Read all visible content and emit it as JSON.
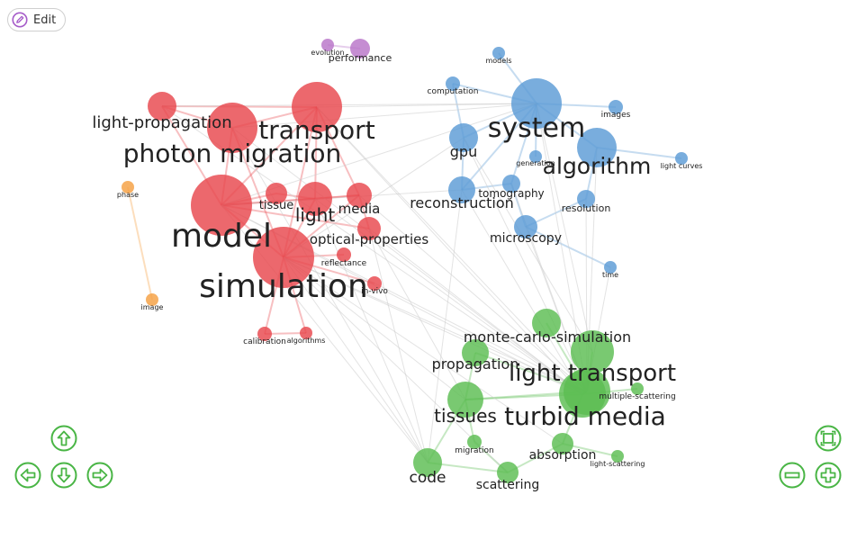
{
  "toolbar": {
    "edit_label": "Edit",
    "edit_icon": "pencil-icon"
  },
  "colors": {
    "clusters": {
      "red": "#e8474d",
      "blue": "#5b9bd5",
      "green": "#5cbd52",
      "orange": "#f5a042",
      "purple": "#b874c8"
    },
    "edge": "#cccccc",
    "controls": "#49b545",
    "edit": "#a65cc9"
  },
  "nav_controls": {
    "up": {
      "icon": "arrow-up-icon"
    },
    "down": {
      "icon": "arrow-down-icon"
    },
    "left": {
      "icon": "arrow-left-icon"
    },
    "right": {
      "icon": "arrow-right-icon"
    },
    "fit": {
      "icon": "fit-screen-icon"
    },
    "zoom_out": {
      "icon": "zoom-out-icon"
    },
    "zoom_in": {
      "icon": "zoom-in-icon"
    }
  },
  "network": {
    "nodes": [
      {
        "id": "model",
        "label": "model",
        "cluster": "red"
      },
      {
        "id": "simulation",
        "label": "simulation",
        "cluster": "red"
      },
      {
        "id": "photon-migration",
        "label": "photon migration",
        "cluster": "red"
      },
      {
        "id": "transport",
        "label": "transport",
        "cluster": "red"
      },
      {
        "id": "light-propagation",
        "label": "light-propagation",
        "cluster": "red"
      },
      {
        "id": "light",
        "label": "light",
        "cluster": "red"
      },
      {
        "id": "media",
        "label": "media",
        "cluster": "red"
      },
      {
        "id": "tissue",
        "label": "tissue",
        "cluster": "red"
      },
      {
        "id": "optical-properties",
        "label": "optical-properties",
        "cluster": "red"
      },
      {
        "id": "reflectance",
        "label": "reflectance",
        "cluster": "red"
      },
      {
        "id": "in-vivo",
        "label": "in-vivo",
        "cluster": "red"
      },
      {
        "id": "calibration",
        "label": "calibration",
        "cluster": "red"
      },
      {
        "id": "algorithms",
        "label": "algorithms",
        "cluster": "red"
      },
      {
        "id": "system",
        "label": "system",
        "cluster": "blue"
      },
      {
        "id": "algorithm",
        "label": "algorithm",
        "cluster": "blue"
      },
      {
        "id": "gpu",
        "label": "gpu",
        "cluster": "blue"
      },
      {
        "id": "reconstruction",
        "label": "reconstruction",
        "cluster": "blue"
      },
      {
        "id": "tomography",
        "label": "tomography",
        "cluster": "blue"
      },
      {
        "id": "resolution",
        "label": "resolution",
        "cluster": "blue"
      },
      {
        "id": "microscopy",
        "label": "microscopy",
        "cluster": "blue"
      },
      {
        "id": "computation",
        "label": "computation",
        "cluster": "blue"
      },
      {
        "id": "models",
        "label": "models",
        "cluster": "blue"
      },
      {
        "id": "images",
        "label": "images",
        "cluster": "blue"
      },
      {
        "id": "generation",
        "label": "generation",
        "cluster": "blue"
      },
      {
        "id": "light-curves",
        "label": "light curves",
        "cluster": "blue"
      },
      {
        "id": "time",
        "label": "time",
        "cluster": "blue"
      },
      {
        "id": "monte-carlo-simulation",
        "label": "monte-carlo-simulation",
        "cluster": "green"
      },
      {
        "id": "light-transport",
        "label": "light transport",
        "cluster": "green"
      },
      {
        "id": "turbid-media",
        "label": "turbid media",
        "cluster": "green"
      },
      {
        "id": "tissues",
        "label": "tissues",
        "cluster": "green"
      },
      {
        "id": "propagation",
        "label": "propagation",
        "cluster": "green"
      },
      {
        "id": "multiple-scattering",
        "label": "multiple-scattering",
        "cluster": "green"
      },
      {
        "id": "absorption",
        "label": "absorption",
        "cluster": "green"
      },
      {
        "id": "light-scattering",
        "label": "light-scattering",
        "cluster": "green"
      },
      {
        "id": "migration",
        "label": "migration",
        "cluster": "green"
      },
      {
        "id": "code",
        "label": "code",
        "cluster": "green"
      },
      {
        "id": "scattering",
        "label": "scattering",
        "cluster": "green"
      },
      {
        "id": "green-unlabeled",
        "label": "",
        "cluster": "green"
      },
      {
        "id": "phase",
        "label": "phase",
        "cluster": "orange"
      },
      {
        "id": "image",
        "label": "image",
        "cluster": "orange"
      },
      {
        "id": "evolution",
        "label": "evolution",
        "cluster": "purple"
      },
      {
        "id": "performance",
        "label": "performance",
        "cluster": "purple"
      }
    ],
    "edges": [
      [
        "model",
        "simulation"
      ],
      [
        "model",
        "photon-migration"
      ],
      [
        "model",
        "transport"
      ],
      [
        "model",
        "light-propagation"
      ],
      [
        "model",
        "light"
      ],
      [
        "model",
        "media"
      ],
      [
        "model",
        "tissue"
      ],
      [
        "model",
        "optical-properties"
      ],
      [
        "simulation",
        "photon-migration"
      ],
      [
        "simulation",
        "transport"
      ],
      [
        "simulation",
        "light"
      ],
      [
        "simulation",
        "media"
      ],
      [
        "simulation",
        "reflectance"
      ],
      [
        "simulation",
        "in-vivo"
      ],
      [
        "simulation",
        "calibration"
      ],
      [
        "simulation",
        "algorithms"
      ],
      [
        "photon-migration",
        "transport"
      ],
      [
        "photon-migration",
        "light-propagation"
      ],
      [
        "transport",
        "light-propagation"
      ],
      [
        "transport",
        "light"
      ],
      [
        "transport",
        "media"
      ],
      [
        "light",
        "media"
      ],
      [
        "light",
        "tissue"
      ],
      [
        "media",
        "optical-properties"
      ],
      [
        "calibration",
        "algorithms"
      ],
      [
        "system",
        "algorithm"
      ],
      [
        "system",
        "gpu"
      ],
      [
        "system",
        "reconstruction"
      ],
      [
        "system",
        "tomography"
      ],
      [
        "system",
        "computation"
      ],
      [
        "system",
        "models"
      ],
      [
        "system",
        "images"
      ],
      [
        "system",
        "generation"
      ],
      [
        "algorithm",
        "light-curves"
      ],
      [
        "algorithm",
        "resolution"
      ],
      [
        "gpu",
        "reconstruction"
      ],
      [
        "reconstruction",
        "tomography"
      ],
      [
        "tomography",
        "microscopy"
      ],
      [
        "resolution",
        "microscopy"
      ],
      [
        "microscopy",
        "time"
      ],
      [
        "computation",
        "gpu"
      ],
      [
        "monte-carlo-simulation",
        "light-transport"
      ],
      [
        "light-transport",
        "turbid-media"
      ],
      [
        "light-transport",
        "tissues"
      ],
      [
        "light-transport",
        "propagation"
      ],
      [
        "turbid-media",
        "tissues"
      ],
      [
        "turbid-media",
        "absorption"
      ],
      [
        "turbid-media",
        "multiple-scattering"
      ],
      [
        "tissues",
        "propagation"
      ],
      [
        "tissues",
        "code"
      ],
      [
        "tissues",
        "migration"
      ],
      [
        "code",
        "scattering"
      ],
      [
        "absorption",
        "scattering"
      ],
      [
        "absorption",
        "light-scattering"
      ],
      [
        "green-unlabeled",
        "light-transport"
      ],
      [
        "migration",
        "scattering"
      ],
      [
        "phase",
        "image"
      ],
      [
        "evolution",
        "performance"
      ],
      [
        "model",
        "system"
      ],
      [
        "model",
        "light-transport"
      ],
      [
        "model",
        "turbid-media"
      ],
      [
        "model",
        "code"
      ],
      [
        "model",
        "reconstruction"
      ],
      [
        "simulation",
        "light-transport"
      ],
      [
        "simulation",
        "turbid-media"
      ],
      [
        "simulation",
        "code"
      ],
      [
        "simulation",
        "tissues"
      ],
      [
        "simulation",
        "scattering"
      ],
      [
        "simulation",
        "absorption"
      ],
      [
        "simulation",
        "gpu"
      ],
      [
        "photon-migration",
        "system"
      ],
      [
        "photon-migration",
        "turbid-media"
      ],
      [
        "photon-migration",
        "code"
      ],
      [
        "transport",
        "system"
      ],
      [
        "transport",
        "light-transport"
      ],
      [
        "transport",
        "turbid-media"
      ],
      [
        "light",
        "turbid-media"
      ],
      [
        "light",
        "code"
      ],
      [
        "media",
        "light-transport"
      ],
      [
        "optical-properties",
        "turbid-media"
      ],
      [
        "optical-properties",
        "tissues"
      ],
      [
        "optical-properties",
        "code"
      ],
      [
        "system",
        "light-transport"
      ],
      [
        "system",
        "monte-carlo-simulation"
      ],
      [
        "algorithm",
        "light-transport"
      ],
      [
        "gpu",
        "monte-carlo-simulation"
      ],
      [
        "gpu",
        "light-transport"
      ],
      [
        "reconstruction",
        "code"
      ],
      [
        "reconstruction",
        "turbid-media"
      ],
      [
        "tomography",
        "light-transport"
      ],
      [
        "microscopy",
        "light-transport"
      ],
      [
        "time",
        "light-transport"
      ],
      [
        "resolution",
        "light-transport"
      ],
      [
        "light-propagation",
        "system"
      ],
      [
        "light-propagation",
        "turbid-media"
      ]
    ]
  }
}
